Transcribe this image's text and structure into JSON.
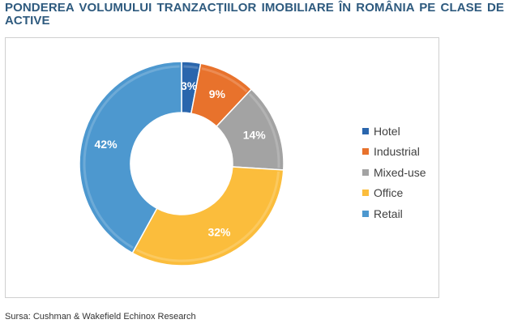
{
  "title": "PONDEREA VOLUMULUI TRANZACȚIILOR IMOBILIARE ÎN ROMÂNIA PE CLASE DE ACTIVE",
  "source": "Sursa: Cushman & Wakefield Echinox Research",
  "chart_data": {
    "type": "pie",
    "donut": true,
    "legend_position": "right",
    "categories": [
      "Hotel",
      "Industrial",
      "Mixed-use",
      "Office",
      "Retail"
    ],
    "values": [
      3,
      9,
      14,
      32,
      42
    ],
    "data_labels": [
      "3%",
      "9%",
      "14%",
      "32%",
      "42%"
    ],
    "colors": [
      "#2a66ad",
      "#e8722c",
      "#a3a3a3",
      "#fbbd3c",
      "#4d98cf"
    ]
  }
}
